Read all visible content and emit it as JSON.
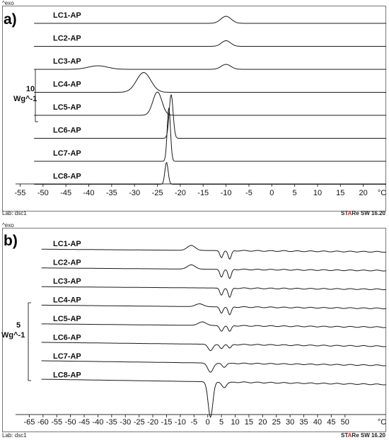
{
  "colors": {
    "trace": "#1a1a1a",
    "frame": "#777777",
    "star_accent": "#d62020"
  },
  "footer": {
    "lab": "Lab: dsc1",
    "star_prefix": "ST",
    "star_accent": "A",
    "star_mid": "R",
    "star_suffix": "e SW 16.20"
  },
  "chart_data": [
    {
      "type": "line",
      "panel_label": "a)",
      "exo_label": "^exo",
      "xlabel": "°C",
      "xlim": [
        -56,
        25
      ],
      "xticks": [
        -55,
        -50,
        -45,
        -40,
        -35,
        -30,
        -25,
        -20,
        -15,
        -10,
        -5,
        0,
        5,
        10,
        15,
        20
      ],
      "scale_bar": {
        "value": "10",
        "unit": "Wg^-1"
      },
      "grid": false,
      "series": [
        {
          "name": "LC1-AP",
          "peaks": [
            {
              "x": -10,
              "h": 10,
              "w": 1.6
            }
          ],
          "slope": 0
        },
        {
          "name": "LC2-AP",
          "peaks": [
            {
              "x": -10,
              "h": 8,
              "w": 1.4
            }
          ],
          "slope": 0
        },
        {
          "name": "LC3-AP",
          "peaks": [
            {
              "x": -38,
              "h": 5,
              "w": 3
            },
            {
              "x": -10,
              "h": 7,
              "w": 1.5
            }
          ],
          "slope": 0
        },
        {
          "name": "LC4-AP",
          "peaks": [
            {
              "x": -28,
              "h": 28,
              "w": 2.2
            }
          ],
          "slope": 0
        },
        {
          "name": "LC5-AP",
          "peaks": [
            {
              "x": -25,
              "h": 33,
              "w": 1.4
            }
          ],
          "slope": 0
        },
        {
          "name": "LC6-AP",
          "peaks": [
            {
              "x": -22,
              "h": 62,
              "w": 0.6
            }
          ],
          "slope": 0
        },
        {
          "name": "LC7-AP",
          "peaks": [
            {
              "x": -22.5,
              "h": 76,
              "w": 0.5
            }
          ],
          "slope": 0
        },
        {
          "name": "LC8-AP",
          "peaks": [
            {
              "x": -23,
              "h": 31,
              "w": 0.5
            }
          ],
          "slope": 0
        }
      ]
    },
    {
      "type": "line",
      "panel_label": "b)",
      "exo_label": "^exo",
      "xlabel": "°C",
      "xlim": [
        -70,
        65
      ],
      "xticks": [
        -65,
        -60,
        -55,
        -50,
        -45,
        -40,
        -35,
        -30,
        -25,
        -20,
        -15,
        -10,
        -5,
        0,
        5,
        10,
        15,
        20,
        25,
        30,
        35,
        40,
        45,
        50
      ],
      "scale_bar": {
        "value": "5",
        "unit": "Wg^-1"
      },
      "grid": false,
      "series": [
        {
          "name": "LC1-AP",
          "peaks": [
            {
              "x": -6,
              "h": 7,
              "w": 2
            },
            {
              "x": 5,
              "h": -10,
              "w": 0.8
            },
            {
              "x": 8,
              "h": -12,
              "w": 0.8
            }
          ],
          "slope": 4
        },
        {
          "name": "LC2-AP",
          "peaks": [
            {
              "x": -6,
              "h": 6,
              "w": 2
            },
            {
              "x": 5,
              "h": -11,
              "w": 0.8
            },
            {
              "x": 8,
              "h": -13,
              "w": 0.8
            }
          ],
          "slope": 4
        },
        {
          "name": "LC3-AP",
          "peaks": [
            {
              "x": 5,
              "h": -10,
              "w": 0.8
            },
            {
              "x": 8,
              "h": -13,
              "w": 0.8
            }
          ],
          "slope": 4
        },
        {
          "name": "LC4-AP",
          "peaks": [
            {
              "x": -3,
              "h": 4,
              "w": 2
            },
            {
              "x": 5,
              "h": -9,
              "w": 0.8
            },
            {
              "x": 8,
              "h": -11,
              "w": 0.8
            }
          ],
          "slope": 5
        },
        {
          "name": "LC5-AP",
          "peaks": [
            {
              "x": -2,
              "h": 5,
              "w": 2
            },
            {
              "x": 5,
              "h": -8,
              "w": 0.9
            },
            {
              "x": 8,
              "h": -8,
              "w": 0.8
            }
          ],
          "slope": 5
        },
        {
          "name": "LC6-AP",
          "peaks": [
            {
              "x": 1,
              "h": -9,
              "w": 1.2
            },
            {
              "x": 5,
              "h": -6,
              "w": 0.9
            },
            {
              "x": 8,
              "h": -5,
              "w": 0.8
            }
          ],
          "slope": 6
        },
        {
          "name": "LC7-AP",
          "peaks": [
            {
              "x": 1,
              "h": -13,
              "w": 1.4
            },
            {
              "x": 6,
              "h": -6,
              "w": 1
            }
          ],
          "slope": 7
        },
        {
          "name": "LC8-AP",
          "peaks": [
            {
              "x": 1,
              "h": -50,
              "w": 1.2
            },
            {
              "x": 6,
              "h": -8,
              "w": 1.2
            }
          ],
          "slope": 8
        }
      ]
    }
  ]
}
